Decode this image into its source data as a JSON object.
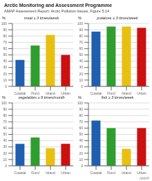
{
  "title": "Arctic Monitoring and Assessment Programme",
  "subtitle": "AMAP Assessment Report: Arctic Pollution Issues, Figure 5.14",
  "annotations": [
    "AMAP"
  ],
  "chart_data": [
    {
      "type": "bar",
      "title": "meat ≥ 3 times/week",
      "ylabel": "%",
      "categories": [
        "Coastal",
        "Fjord",
        "Inland",
        "Urban"
      ],
      "values": [
        42,
        65,
        82,
        50
      ],
      "colors": [
        "#1e5faf",
        "#2e9e2e",
        "#e8c010",
        "#cc1010"
      ],
      "ylim": [
        0,
        100
      ],
      "yticks": [
        0,
        10,
        20,
        30,
        40,
        50,
        60,
        70,
        80,
        90,
        100
      ],
      "grid": true
    },
    {
      "type": "bar",
      "title": "potatoes ≥ 3 times/week",
      "ylabel": "%",
      "categories": [
        "Coastal",
        "Fjord",
        "Inland",
        "Urban"
      ],
      "values": [
        87,
        95,
        95,
        93
      ],
      "colors": [
        "#1e5faf",
        "#2e9e2e",
        "#e8c010",
        "#cc1010"
      ],
      "ylim": [
        0,
        100
      ],
      "yticks": [
        0,
        10,
        20,
        30,
        40,
        50,
        60,
        70,
        80,
        90,
        100
      ],
      "grid": true
    },
    {
      "type": "bar",
      "title": "vegetables ≥ 9 times/month",
      "ylabel": "%",
      "categories": [
        "Coastal",
        "Fjord",
        "Inland",
        "Urban"
      ],
      "values": [
        35,
        45,
        28,
        35
      ],
      "colors": [
        "#1e5faf",
        "#2e9e2e",
        "#e8c010",
        "#cc1010"
      ],
      "ylim": [
        0,
        100
      ],
      "yticks": [
        0,
        10,
        20,
        30,
        40,
        50,
        60,
        70,
        80,
        90,
        100
      ],
      "grid": true
    },
    {
      "type": "bar",
      "title": "fish ≥ 3 times/week",
      "ylabel": "%",
      "categories": [
        "Coastal",
        "Fjord",
        "Inland",
        "Urban"
      ],
      "values": [
        72,
        60,
        27,
        60
      ],
      "colors": [
        "#1e5faf",
        "#2e9e2e",
        "#e8c010",
        "#cc1010"
      ],
      "ylim": [
        0,
        100
      ],
      "yticks": [
        0,
        10,
        20,
        30,
        40,
        50,
        60,
        70,
        80,
        90,
        100
      ],
      "grid": true
    }
  ]
}
